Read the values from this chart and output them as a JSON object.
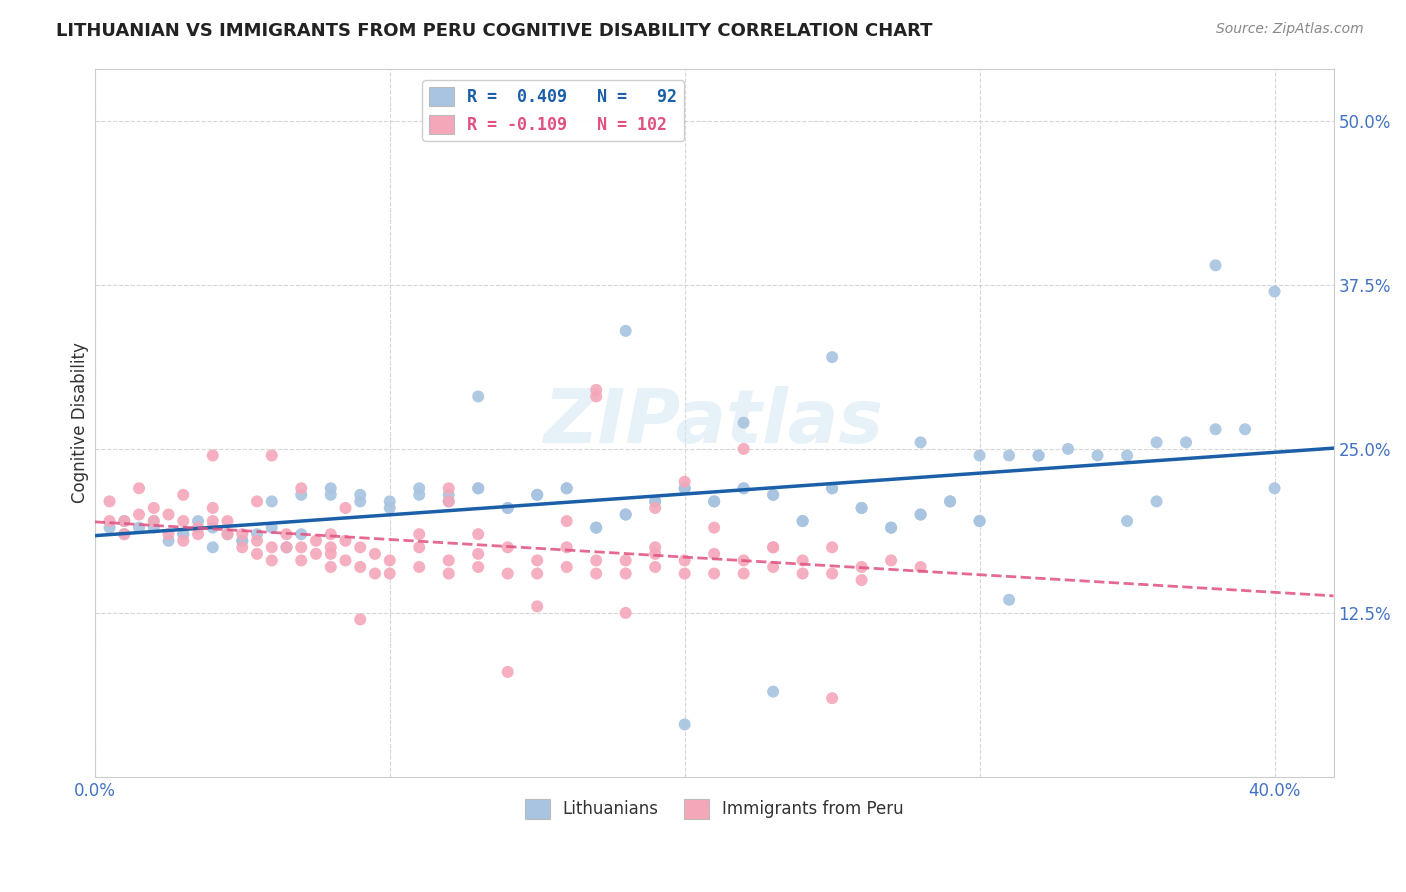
{
  "title": "LITHUANIAN VS IMMIGRANTS FROM PERU COGNITIVE DISABILITY CORRELATION CHART",
  "source": "Source: ZipAtlas.com",
  "ylabel": "Cognitive Disability",
  "yticks": [
    0.125,
    0.25,
    0.375,
    0.5
  ],
  "ytick_labels": [
    "12.5%",
    "25.0%",
    "37.5%",
    "50.0%"
  ],
  "xlim": [
    0.0,
    0.42
  ],
  "ylim": [
    0.0,
    0.54
  ],
  "color_blue": "#a8c4e0",
  "color_pink": "#f4a7b9",
  "line_blue": "#1a5fa8",
  "line_pink": "#e05080",
  "watermark": "ZIPatlas",
  "blue_scatter_x": [
    0.005,
    0.01,
    0.015,
    0.02,
    0.025,
    0.03,
    0.035,
    0.04,
    0.045,
    0.05,
    0.055,
    0.06,
    0.065,
    0.07,
    0.01,
    0.02,
    0.03,
    0.04,
    0.05,
    0.06,
    0.07,
    0.08,
    0.09,
    0.1,
    0.11,
    0.12,
    0.13,
    0.14,
    0.15,
    0.16,
    0.17,
    0.18,
    0.19,
    0.2,
    0.21,
    0.22,
    0.23,
    0.24,
    0.25,
    0.26,
    0.27,
    0.28,
    0.29,
    0.3,
    0.32,
    0.34,
    0.36,
    0.38,
    0.4,
    0.08,
    0.09,
    0.1,
    0.11,
    0.12,
    0.13,
    0.14,
    0.15,
    0.16,
    0.17,
    0.18,
    0.19,
    0.2,
    0.21,
    0.22,
    0.23,
    0.24,
    0.25,
    0.26,
    0.27,
    0.28,
    0.29,
    0.3,
    0.31,
    0.32,
    0.33,
    0.35,
    0.37,
    0.39,
    0.13,
    0.18,
    0.22,
    0.25,
    0.31,
    0.35,
    0.2,
    0.23,
    0.3,
    0.28,
    0.38,
    0.4,
    0.36
  ],
  "blue_scatter_y": [
    0.19,
    0.185,
    0.19,
    0.195,
    0.18,
    0.185,
    0.195,
    0.175,
    0.185,
    0.18,
    0.185,
    0.19,
    0.175,
    0.185,
    0.195,
    0.19,
    0.185,
    0.19,
    0.18,
    0.21,
    0.215,
    0.22,
    0.215,
    0.21,
    0.22,
    0.215,
    0.22,
    0.205,
    0.215,
    0.22,
    0.19,
    0.2,
    0.21,
    0.22,
    0.21,
    0.22,
    0.215,
    0.195,
    0.22,
    0.205,
    0.19,
    0.2,
    0.21,
    0.195,
    0.245,
    0.245,
    0.21,
    0.265,
    0.22,
    0.215,
    0.21,
    0.205,
    0.215,
    0.21,
    0.22,
    0.205,
    0.215,
    0.22,
    0.19,
    0.2,
    0.21,
    0.22,
    0.21,
    0.22,
    0.215,
    0.195,
    0.22,
    0.205,
    0.19,
    0.2,
    0.21,
    0.195,
    0.245,
    0.245,
    0.25,
    0.245,
    0.255,
    0.265,
    0.29,
    0.34,
    0.27,
    0.32,
    0.135,
    0.195,
    0.04,
    0.065,
    0.245,
    0.255,
    0.39,
    0.37,
    0.255
  ],
  "pink_scatter_x": [
    0.005,
    0.01,
    0.015,
    0.02,
    0.025,
    0.03,
    0.035,
    0.04,
    0.045,
    0.05,
    0.055,
    0.06,
    0.065,
    0.07,
    0.075,
    0.08,
    0.085,
    0.09,
    0.095,
    0.1,
    0.005,
    0.01,
    0.015,
    0.02,
    0.025,
    0.03,
    0.035,
    0.04,
    0.045,
    0.05,
    0.055,
    0.06,
    0.065,
    0.07,
    0.075,
    0.08,
    0.085,
    0.09,
    0.095,
    0.1,
    0.11,
    0.12,
    0.13,
    0.14,
    0.15,
    0.16,
    0.17,
    0.18,
    0.19,
    0.2,
    0.21,
    0.22,
    0.23,
    0.24,
    0.25,
    0.26,
    0.27,
    0.28,
    0.11,
    0.12,
    0.13,
    0.14,
    0.15,
    0.16,
    0.17,
    0.18,
    0.19,
    0.2,
    0.21,
    0.22,
    0.23,
    0.24,
    0.25,
    0.26,
    0.17,
    0.2,
    0.22,
    0.12,
    0.09,
    0.15,
    0.18,
    0.25,
    0.13,
    0.16,
    0.19,
    0.21,
    0.14,
    0.08,
    0.06,
    0.04,
    0.03,
    0.07,
    0.055,
    0.085,
    0.12,
    0.23,
    0.19,
    0.17,
    0.11,
    0.08
  ],
  "pink_scatter_y": [
    0.21,
    0.195,
    0.22,
    0.205,
    0.2,
    0.215,
    0.19,
    0.205,
    0.195,
    0.185,
    0.18,
    0.175,
    0.185,
    0.175,
    0.18,
    0.175,
    0.18,
    0.175,
    0.17,
    0.165,
    0.195,
    0.185,
    0.2,
    0.195,
    0.185,
    0.195,
    0.185,
    0.195,
    0.185,
    0.175,
    0.17,
    0.165,
    0.175,
    0.165,
    0.17,
    0.16,
    0.165,
    0.16,
    0.155,
    0.155,
    0.175,
    0.165,
    0.17,
    0.175,
    0.165,
    0.175,
    0.165,
    0.165,
    0.17,
    0.165,
    0.17,
    0.165,
    0.175,
    0.165,
    0.175,
    0.16,
    0.165,
    0.16,
    0.16,
    0.155,
    0.16,
    0.155,
    0.155,
    0.16,
    0.155,
    0.155,
    0.16,
    0.155,
    0.155,
    0.155,
    0.16,
    0.155,
    0.155,
    0.15,
    0.29,
    0.225,
    0.25,
    0.22,
    0.12,
    0.13,
    0.125,
    0.06,
    0.185,
    0.195,
    0.205,
    0.19,
    0.08,
    0.17,
    0.245,
    0.245,
    0.18,
    0.22,
    0.21,
    0.205,
    0.21,
    0.175,
    0.175,
    0.295,
    0.185,
    0.185
  ]
}
